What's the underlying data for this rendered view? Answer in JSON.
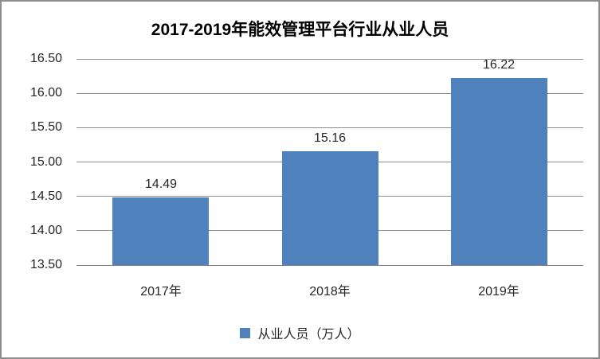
{
  "chart_data": {
    "type": "bar",
    "title": "2017-2019年能效管理平台行业从业人员",
    "categories": [
      "2017年",
      "2018年",
      "2019年"
    ],
    "series": [
      {
        "name": "从业人员（万人）",
        "values": [
          14.49,
          15.16,
          16.22
        ],
        "color": "#4F81BD"
      }
    ],
    "data_labels": [
      "14.49",
      "15.16",
      "16.22"
    ],
    "ylim": [
      13.5,
      16.5
    ],
    "ytick_step": 0.5,
    "yticks": [
      "16.50",
      "16.00",
      "15.50",
      "15.00",
      "14.50",
      "14.00",
      "13.50"
    ],
    "xlabel": "",
    "ylabel": "",
    "grid": true,
    "legend_position": "bottom"
  },
  "legend": {
    "label": "从业人员（万人）",
    "swatch_color": "#4F81BD"
  },
  "frame": {
    "border_color": "#8c8c8c",
    "gridline_color": "#8e8e8e",
    "axis_color": "#7f7f7f"
  }
}
